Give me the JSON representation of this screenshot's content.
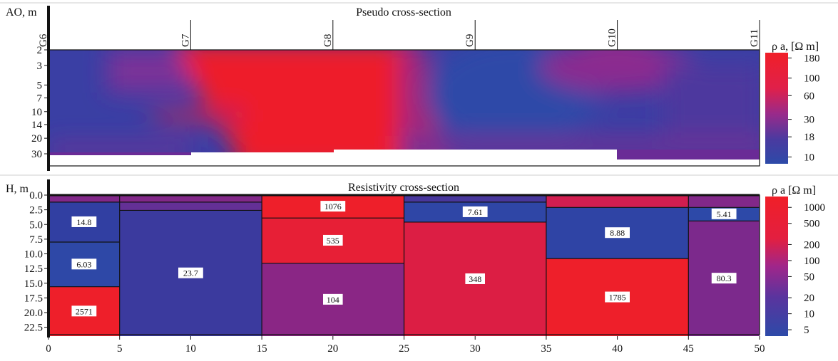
{
  "chart_data": [
    {
      "type": "heatmap",
      "title": "Pseudo cross-section",
      "ylabel": "AO, m",
      "y_ticks": [
        "2",
        "3",
        "5",
        "7",
        "10",
        "14",
        "20",
        "30"
      ],
      "y_scale": "log",
      "ylim": [
        2,
        35
      ],
      "x_range": [
        0,
        50
      ],
      "stations": [
        {
          "name": "G6",
          "x": 0
        },
        {
          "name": "G7",
          "x": 10
        },
        {
          "name": "G8",
          "x": 20
        },
        {
          "name": "G9",
          "x": 30
        },
        {
          "name": "G10",
          "x": 40
        },
        {
          "name": "G11",
          "x": 50
        }
      ],
      "colorbar": {
        "label": "ρ a, [Ω m]",
        "ticks": [
          "180",
          "100",
          "60",
          "30",
          "18",
          "10"
        ],
        "scale": "log",
        "low_color": "#2a4aa6",
        "mid_color": "#7a2a9a",
        "high_color": "#ee1f2a"
      },
      "model_bottom": [
        {
          "x0": 0,
          "x1": 10,
          "ao": 32
        },
        {
          "x0": 10,
          "x1": 20,
          "ao": 30
        },
        {
          "x0": 20,
          "x1": 40,
          "ao": 28
        },
        {
          "x0": 40,
          "x1": 50,
          "ao": 34
        }
      ]
    },
    {
      "type": "heatmap",
      "title": "Resistivity cross-section",
      "ylabel": "H, m",
      "xlim": [
        0,
        50
      ],
      "ylim": [
        0,
        24
      ],
      "x_ticks": [
        "0",
        "5",
        "10",
        "15",
        "20",
        "25",
        "30",
        "35",
        "40",
        "45",
        "50"
      ],
      "y_ticks": [
        "0.0",
        "2.5",
        "5.0",
        "7.5",
        "10.0",
        "12.5",
        "15.0",
        "17.5",
        "20.0",
        "22.5"
      ],
      "colorbar": {
        "label": "ρ a [Ω m]",
        "ticks": [
          "1000",
          "500",
          "200",
          "100",
          "50",
          "20",
          "10",
          "5"
        ],
        "scale": "log"
      },
      "columns": [
        {
          "x0": 0,
          "x1": 5,
          "layers": [
            {
              "top": 0,
              "bottom": 1.2,
              "rho": 90,
              "label": ""
            },
            {
              "top": 1.2,
              "bottom": 8,
              "rho": 14.8,
              "label": "14.8"
            },
            {
              "top": 8,
              "bottom": 15.6,
              "rho": 6.03,
              "label": "6.03"
            },
            {
              "top": 15.6,
              "bottom": 24,
              "rho": 2571,
              "label": "2571"
            }
          ]
        },
        {
          "x0": 5,
          "x1": 15,
          "layers": [
            {
              "top": 0,
              "bottom": 1.2,
              "rho": 90,
              "label": ""
            },
            {
              "top": 1.2,
              "bottom": 2.6,
              "rho": 50,
              "label": ""
            },
            {
              "top": 2.6,
              "bottom": 24,
              "rho": 23.7,
              "label": "23.7"
            }
          ]
        },
        {
          "x0": 15,
          "x1": 25,
          "layers": [
            {
              "top": 0,
              "bottom": 3.9,
              "rho": 1076,
              "label": "1076"
            },
            {
              "top": 3.9,
              "bottom": 11.6,
              "rho": 535,
              "label": "535"
            },
            {
              "top": 11.6,
              "bottom": 24,
              "rho": 104,
              "label": "104"
            }
          ]
        },
        {
          "x0": 25,
          "x1": 35,
          "layers": [
            {
              "top": 0,
              "bottom": 1.2,
              "rho": 30,
              "label": ""
            },
            {
              "top": 1.2,
              "bottom": 4.6,
              "rho": 7.61,
              "label": "7.61"
            },
            {
              "top": 4.6,
              "bottom": 24,
              "rho": 348,
              "label": "348"
            }
          ]
        },
        {
          "x0": 35,
          "x1": 45,
          "layers": [
            {
              "top": 0,
              "bottom": 2.1,
              "rho": 250,
              "label": ""
            },
            {
              "top": 2.1,
              "bottom": 10.8,
              "rho": 8.88,
              "label": "8.88"
            },
            {
              "top": 10.8,
              "bottom": 24,
              "rho": 1785,
              "label": "1785"
            }
          ]
        },
        {
          "x0": 45,
          "x1": 50,
          "layers": [
            {
              "top": 0,
              "bottom": 2.1,
              "rho": 90,
              "label": ""
            },
            {
              "top": 2.1,
              "bottom": 4.4,
              "rho": 5.41,
              "label": "5.41"
            },
            {
              "top": 4.4,
              "bottom": 24,
              "rho": 80.3,
              "label": "80.3"
            }
          ]
        }
      ]
    }
  ]
}
